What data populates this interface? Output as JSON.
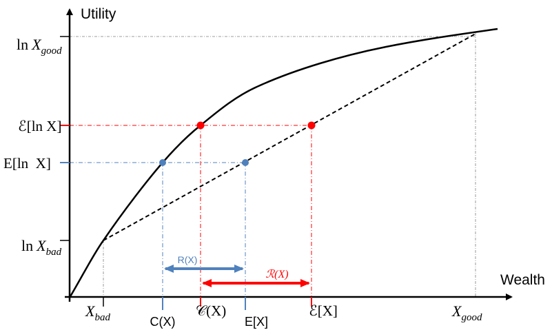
{
  "axes": {
    "y_axis_label": "Utility",
    "x_axis_label": "Wealth"
  },
  "y_tick_labels": {
    "ln_x_good": {
      "prefix": "ln",
      "var": "X",
      "sub": "good"
    },
    "curly_e_ln_x": "ℰ[ln X]",
    "e_ln_x": "E[ln  X]",
    "ln_x_bad": {
      "prefix": "ln",
      "var": "X",
      "sub": "bad"
    }
  },
  "x_tick_labels": {
    "x_bad": {
      "var": "X",
      "sub": "bad"
    },
    "c_x": "C(X)",
    "curly_c_x": "𝒞(X)",
    "e_x": "E[X]",
    "curly_e_x": "ℰ[X]",
    "x_good": {
      "var": "X",
      "sub": "good"
    }
  },
  "arrow_labels": {
    "r_x": "R(X)",
    "curly_r_x": "ℛ(X)"
  },
  "colors": {
    "curve": "#000000",
    "blue": "#4f81bd",
    "red": "#ff0000",
    "guide_gray": "#7f7f7f"
  },
  "markers": {
    "blue_points": 2,
    "red_points": 2
  }
}
